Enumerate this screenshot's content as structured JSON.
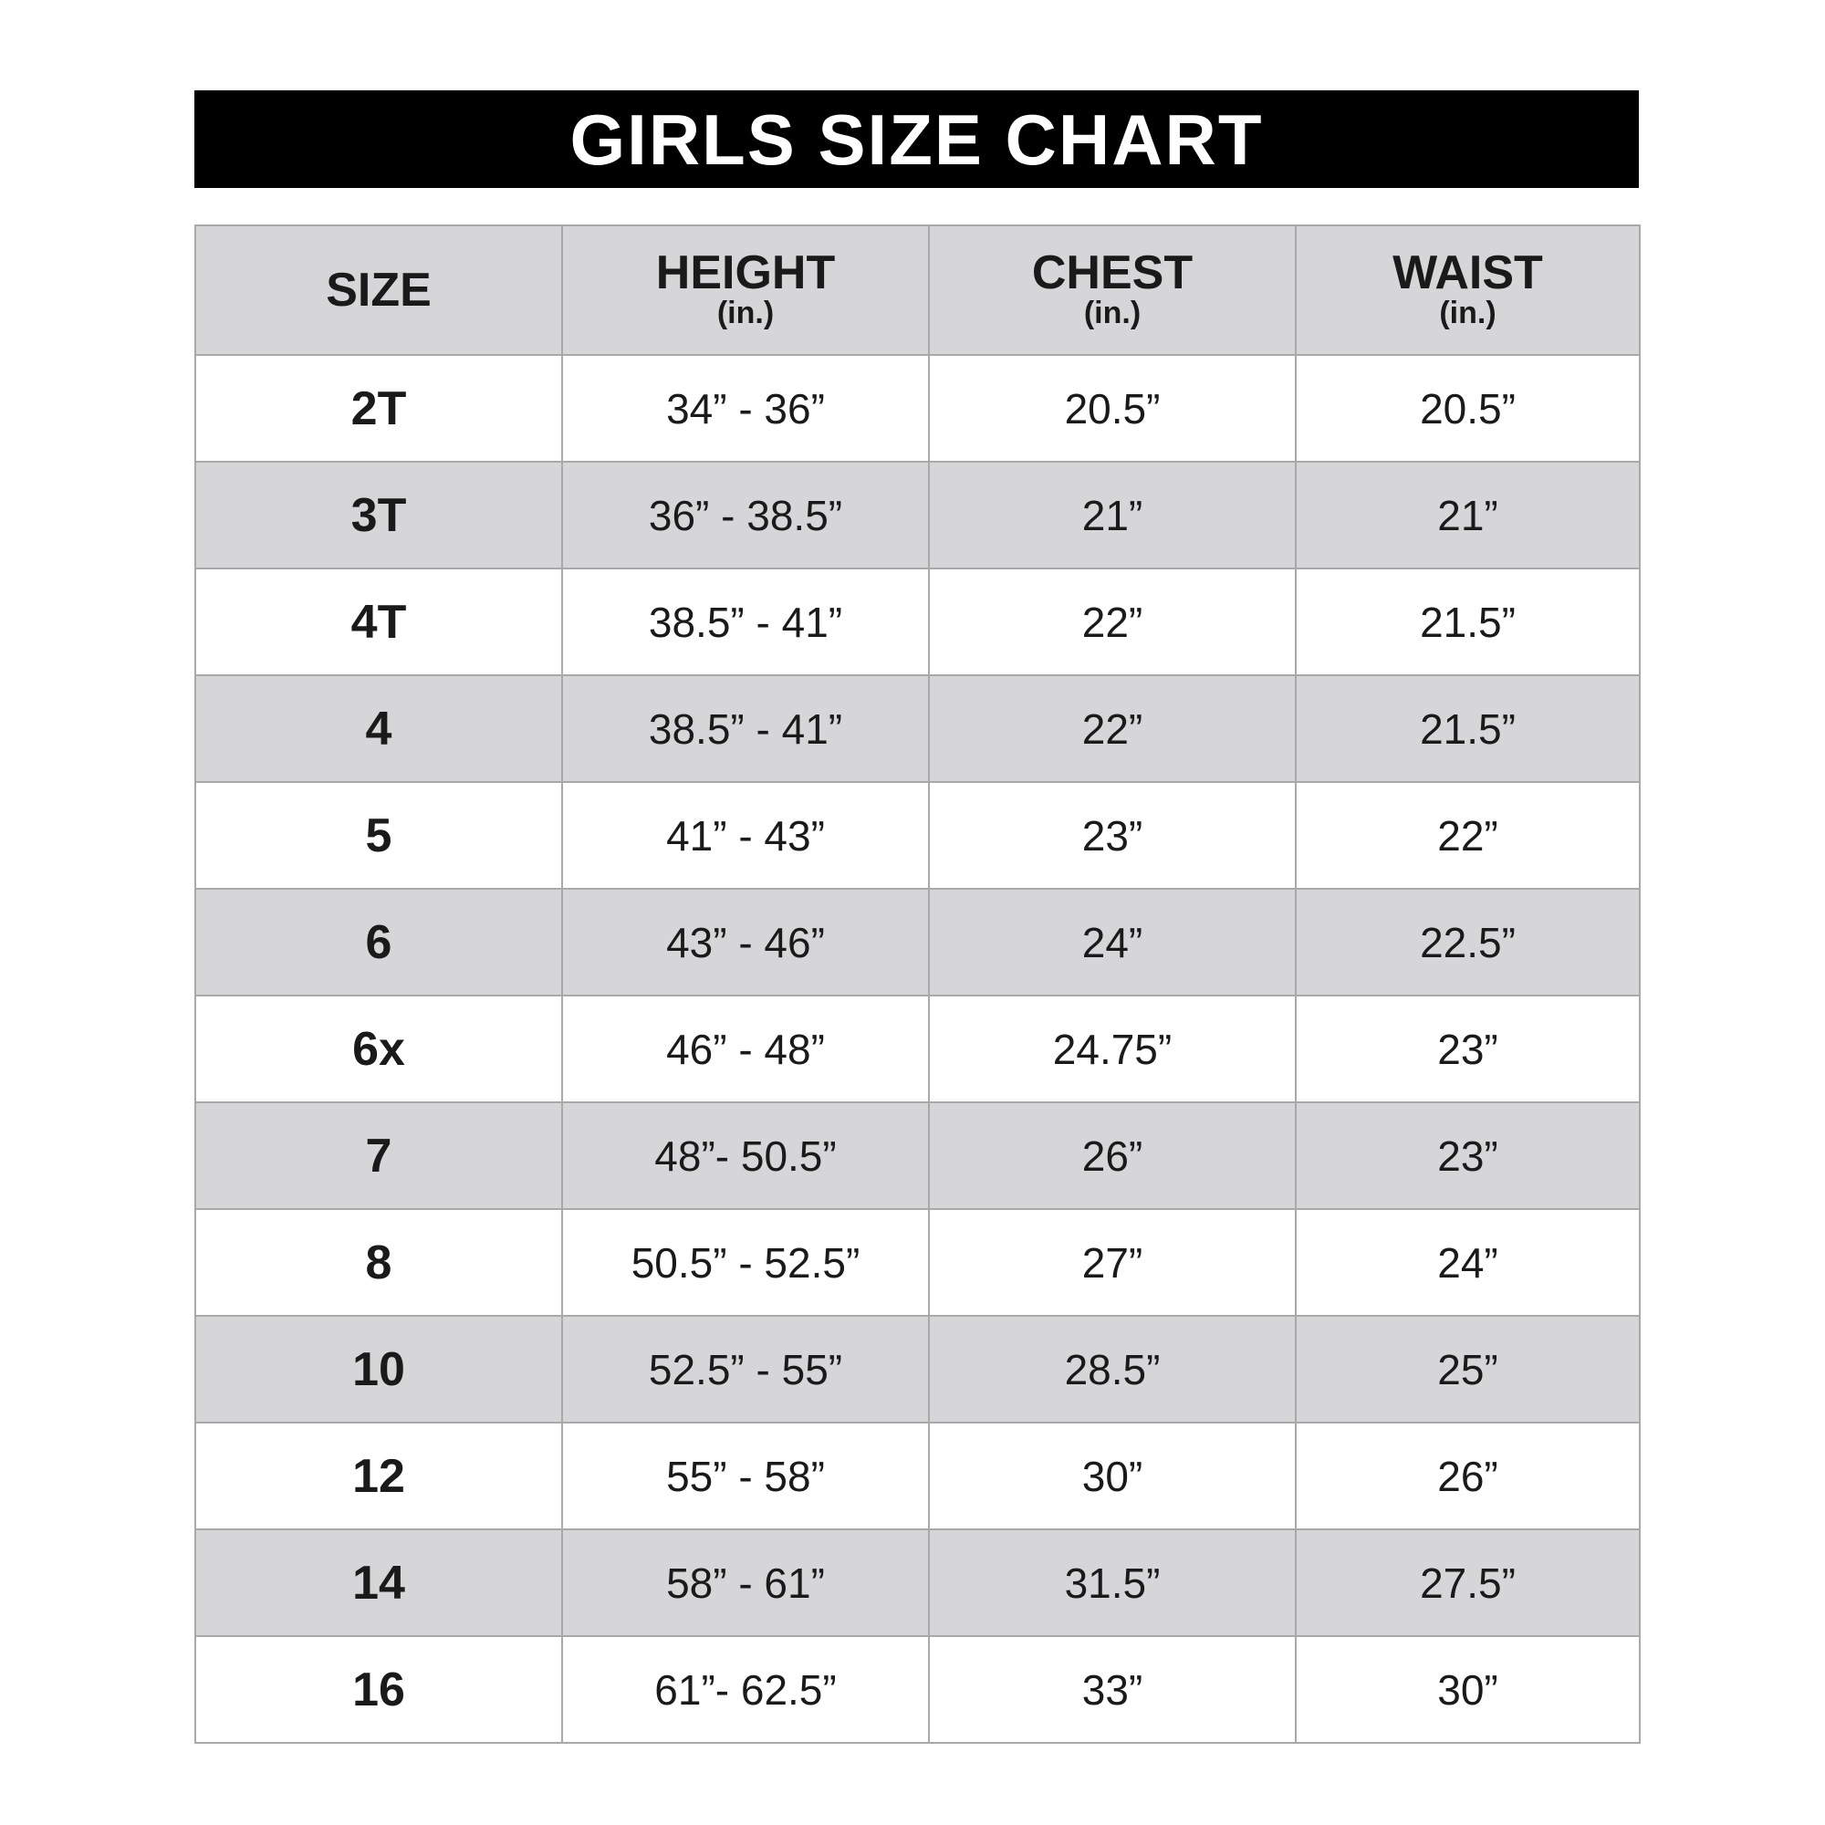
{
  "title": "GIRLS SIZE CHART",
  "headers": [
    {
      "label": "SIZE",
      "unit": ""
    },
    {
      "label": "HEIGHT",
      "unit": "(in.)"
    },
    {
      "label": "CHEST",
      "unit": "(in.)"
    },
    {
      "label": "WAIST",
      "unit": "(in.)"
    }
  ],
  "rows": [
    {
      "size": "2T",
      "height": "34” - 36”",
      "chest": "20.5”",
      "waist": "20.5”"
    },
    {
      "size": "3T",
      "height": "36” - 38.5”",
      "chest": "21”",
      "waist": "21”"
    },
    {
      "size": "4T",
      "height": "38.5” - 41”",
      "chest": "22”",
      "waist": "21.5”"
    },
    {
      "size": "4",
      "height": "38.5” - 41”",
      "chest": "22”",
      "waist": "21.5”"
    },
    {
      "size": "5",
      "height": "41” - 43”",
      "chest": "23”",
      "waist": "22”"
    },
    {
      "size": "6",
      "height": "43” - 46”",
      "chest": "24”",
      "waist": "22.5”"
    },
    {
      "size": "6x",
      "height": "46” - 48”",
      "chest": "24.75”",
      "waist": "23”"
    },
    {
      "size": "7",
      "height": "48”- 50.5”",
      "chest": "26”",
      "waist": "23”"
    },
    {
      "size": "8",
      "height": "50.5” - 52.5”",
      "chest": "27”",
      "waist": "24”"
    },
    {
      "size": "10",
      "height": "52.5” - 55”",
      "chest": "28.5”",
      "waist": "25”"
    },
    {
      "size": "12",
      "height": "55” - 58”",
      "chest": "30”",
      "waist": "26”"
    },
    {
      "size": "14",
      "height": "58” - 61”",
      "chest": "31.5”",
      "waist": "27.5”"
    },
    {
      "size": "16",
      "height": "61”- 62.5”",
      "chest": "33”",
      "waist": "30”"
    }
  ],
  "colors": {
    "title_bar": "#000000",
    "title_text": "#ffffff",
    "shaded_row": "#d6d6d8",
    "plain_row": "#ffffff",
    "grid_line": "#a9a9a9"
  }
}
